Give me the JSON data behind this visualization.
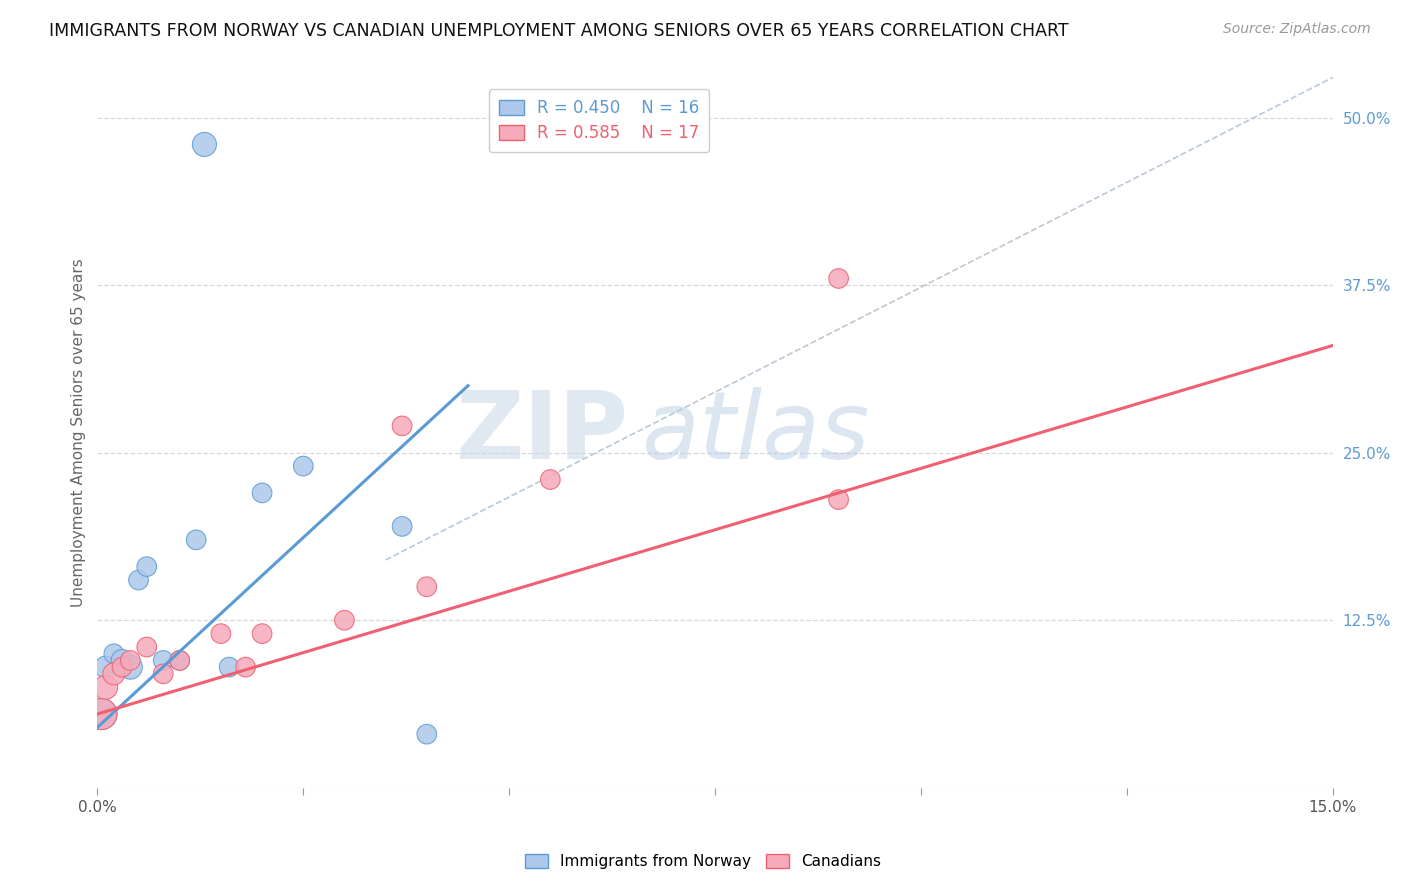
{
  "title": "IMMIGRANTS FROM NORWAY VS CANADIAN UNEMPLOYMENT AMONG SENIORS OVER 65 YEARS CORRELATION CHART",
  "source": "Source: ZipAtlas.com",
  "ylabel": "Unemployment Among Seniors over 65 years",
  "xlim": [
    0.0,
    0.15
  ],
  "ylim": [
    0.0,
    0.53
  ],
  "xticks": [
    0.0,
    0.025,
    0.05,
    0.075,
    0.1,
    0.125,
    0.15
  ],
  "xticklabels": [
    "0.0%",
    "",
    "",
    "",
    "",
    "",
    "15.0%"
  ],
  "yticks_right": [
    0.0,
    0.125,
    0.25,
    0.375,
    0.5
  ],
  "yticklabels_right": [
    "",
    "12.5%",
    "25.0%",
    "37.5%",
    "50.0%"
  ],
  "legend1_R": "0.450",
  "legend1_N": "16",
  "legend2_R": "0.585",
  "legend2_N": "17",
  "blue_color": "#adc8ea",
  "pink_color": "#f5aabb",
  "blue_line_color": "#5b9bd5",
  "pink_line_color": "#f06070",
  "watermark_zip": "ZIP",
  "watermark_atlas": "atlas",
  "blue_scatter_x": [
    0.0005,
    0.001,
    0.002,
    0.003,
    0.004,
    0.005,
    0.006,
    0.008,
    0.01,
    0.012,
    0.016,
    0.02,
    0.025,
    0.037,
    0.04,
    0.013
  ],
  "blue_scatter_y": [
    0.055,
    0.09,
    0.1,
    0.095,
    0.09,
    0.155,
    0.165,
    0.095,
    0.095,
    0.185,
    0.09,
    0.22,
    0.24,
    0.195,
    0.04,
    0.48
  ],
  "blue_scatter_size": [
    500,
    250,
    200,
    250,
    300,
    200,
    200,
    200,
    200,
    200,
    200,
    200,
    200,
    200,
    200,
    300
  ],
  "pink_scatter_x": [
    0.0005,
    0.001,
    0.002,
    0.003,
    0.004,
    0.006,
    0.008,
    0.01,
    0.015,
    0.018,
    0.02,
    0.03,
    0.037,
    0.04,
    0.055,
    0.09,
    0.09
  ],
  "pink_scatter_y": [
    0.055,
    0.075,
    0.085,
    0.09,
    0.095,
    0.105,
    0.085,
    0.095,
    0.115,
    0.09,
    0.115,
    0.125,
    0.27,
    0.15,
    0.23,
    0.38,
    0.215
  ],
  "pink_scatter_size": [
    500,
    300,
    250,
    200,
    200,
    200,
    200,
    200,
    200,
    200,
    200,
    200,
    200,
    200,
    200,
    200,
    200
  ],
  "blue_line_x": [
    0.0,
    0.045
  ],
  "blue_line_y": [
    0.045,
    0.3
  ],
  "pink_line_x": [
    0.0,
    0.15
  ],
  "pink_line_y": [
    0.055,
    0.33
  ],
  "diag_line_x": [
    0.035,
    0.15
  ],
  "diag_line_y": [
    0.17,
    0.53
  ],
  "background_color": "#ffffff",
  "grid_color": "#d8d8d8",
  "grid_style": "--"
}
